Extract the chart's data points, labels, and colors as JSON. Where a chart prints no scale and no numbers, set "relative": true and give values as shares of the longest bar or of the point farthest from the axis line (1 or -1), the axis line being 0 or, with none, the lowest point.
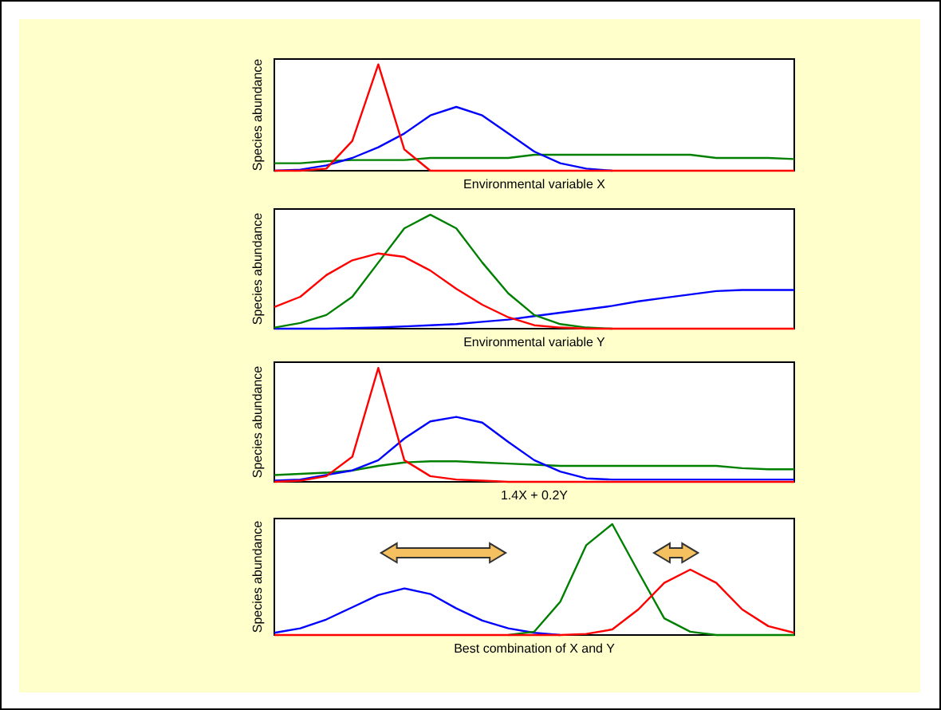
{
  "chart_data": [
    {
      "type": "line",
      "relative": true,
      "xlabel": "Environmental variable X",
      "ylabel": "Species abundance",
      "categories": [
        null,
        null,
        null,
        null,
        null,
        null,
        null,
        null,
        null,
        null,
        null,
        null,
        null,
        null,
        null,
        null,
        null,
        null,
        null,
        null,
        null
      ],
      "series": [
        {
          "color": "#008000",
          "values": [
            0.07,
            0.07,
            0.09,
            0.1,
            0.1,
            0.1,
            0.12,
            0.12,
            0.12,
            0.12,
            0.15,
            0.15,
            0.15,
            0.15,
            0.15,
            0.15,
            0.15,
            0.12,
            0.12,
            0.12,
            0.11
          ]
        },
        {
          "color": "#0000ff",
          "values": [
            0,
            0.01,
            0.05,
            0.12,
            0.22,
            0.35,
            0.52,
            0.6,
            0.52,
            0.35,
            0.18,
            0.07,
            0.02,
            0,
            null,
            null,
            null,
            null,
            null,
            null,
            null
          ]
        },
        {
          "color": "#ff0000",
          "values": [
            0,
            0,
            0.02,
            0.28,
            1,
            0.2,
            0,
            0,
            0,
            0,
            0,
            0,
            0,
            0,
            0,
            0,
            0,
            0,
            0,
            0,
            0
          ]
        }
      ]
    },
    {
      "type": "line",
      "relative": true,
      "xlabel": "Environmental variable Y",
      "ylabel": "Species abundance",
      "categories": [
        null,
        null,
        null,
        null,
        null,
        null,
        null,
        null,
        null,
        null,
        null,
        null,
        null,
        null,
        null,
        null,
        null,
        null,
        null,
        null,
        null
      ],
      "series": [
        {
          "color": "#0000ff",
          "values": [
            0,
            0,
            0,
            0.005,
            0.01,
            0.02,
            0.03,
            0.04,
            0.06,
            0.08,
            0.11,
            0.14,
            0.17,
            0.2,
            0.24,
            0.27,
            0.3,
            0.33,
            0.34,
            0.34,
            0.34
          ]
        },
        {
          "color": "#008000",
          "values": [
            0.01,
            0.05,
            0.12,
            0.28,
            0.58,
            0.88,
            1,
            0.88,
            0.58,
            0.31,
            0.12,
            0.04,
            0.01,
            0,
            null,
            null,
            null,
            null,
            null,
            null,
            null
          ]
        },
        {
          "color": "#ff0000",
          "values": [
            0.19,
            0.28,
            0.47,
            0.6,
            0.66,
            0.63,
            0.51,
            0.35,
            0.21,
            0.1,
            0.03,
            0.01,
            0,
            0,
            0,
            0,
            0,
            0,
            0,
            0,
            0
          ]
        }
      ]
    },
    {
      "type": "line",
      "relative": true,
      "xlabel": "1.4X + 0.2Y",
      "ylabel": "Species abundance",
      "categories": [
        null,
        null,
        null,
        null,
        null,
        null,
        null,
        null,
        null,
        null,
        null,
        null,
        null,
        null,
        null,
        null,
        null,
        null,
        null,
        null,
        null
      ],
      "series": [
        {
          "color": "#008000",
          "values": [
            0.06,
            0.07,
            0.08,
            0.1,
            0.14,
            0.17,
            0.18,
            0.18,
            0.17,
            0.16,
            0.15,
            0.14,
            0.14,
            0.14,
            0.14,
            0.14,
            0.14,
            0.14,
            0.12,
            0.11,
            0.11
          ]
        },
        {
          "color": "#0000ff",
          "values": [
            0.01,
            0.02,
            0.06,
            0.1,
            0.19,
            0.38,
            0.53,
            0.57,
            0.52,
            0.35,
            0.19,
            0.09,
            0.03,
            0.02,
            0.02,
            0.02,
            0.02,
            0.02,
            0.02,
            0.02,
            0.02
          ]
        },
        {
          "color": "#ff0000",
          "values": [
            0,
            0.01,
            0.05,
            0.22,
            1,
            0.19,
            0.05,
            0.02,
            0.01,
            0,
            0,
            0,
            0,
            0,
            0,
            0,
            0,
            0,
            0,
            0,
            0
          ]
        }
      ]
    },
    {
      "type": "line",
      "relative": true,
      "xlabel": "Best combination of X and Y",
      "ylabel": "Species abundance",
      "categories": [
        null,
        null,
        null,
        null,
        null,
        null,
        null,
        null,
        null,
        null,
        null,
        null,
        null,
        null,
        null,
        null,
        null,
        null,
        null,
        null,
        null
      ],
      "series": [
        {
          "color": "#0000ff",
          "values": [
            0.02,
            0.06,
            0.14,
            0.25,
            0.36,
            0.42,
            0.37,
            0.24,
            0.13,
            0.06,
            0.02,
            0,
            null,
            null,
            null,
            null,
            null,
            null,
            null,
            null,
            null
          ]
        },
        {
          "color": "#008000",
          "values": [
            null,
            null,
            null,
            null,
            null,
            null,
            null,
            null,
            null,
            0,
            0.03,
            0.3,
            0.81,
            1,
            0.57,
            0.15,
            0.03,
            0,
            0,
            0,
            0
          ]
        },
        {
          "color": "#ff0000",
          "values": [
            0,
            0,
            0,
            0,
            0,
            0,
            0,
            0,
            0,
            0,
            0,
            0,
            0.01,
            0.05,
            0.23,
            0.47,
            0.59,
            0.47,
            0.23,
            0.08,
            0.02
          ]
        }
      ]
    }
  ]
}
